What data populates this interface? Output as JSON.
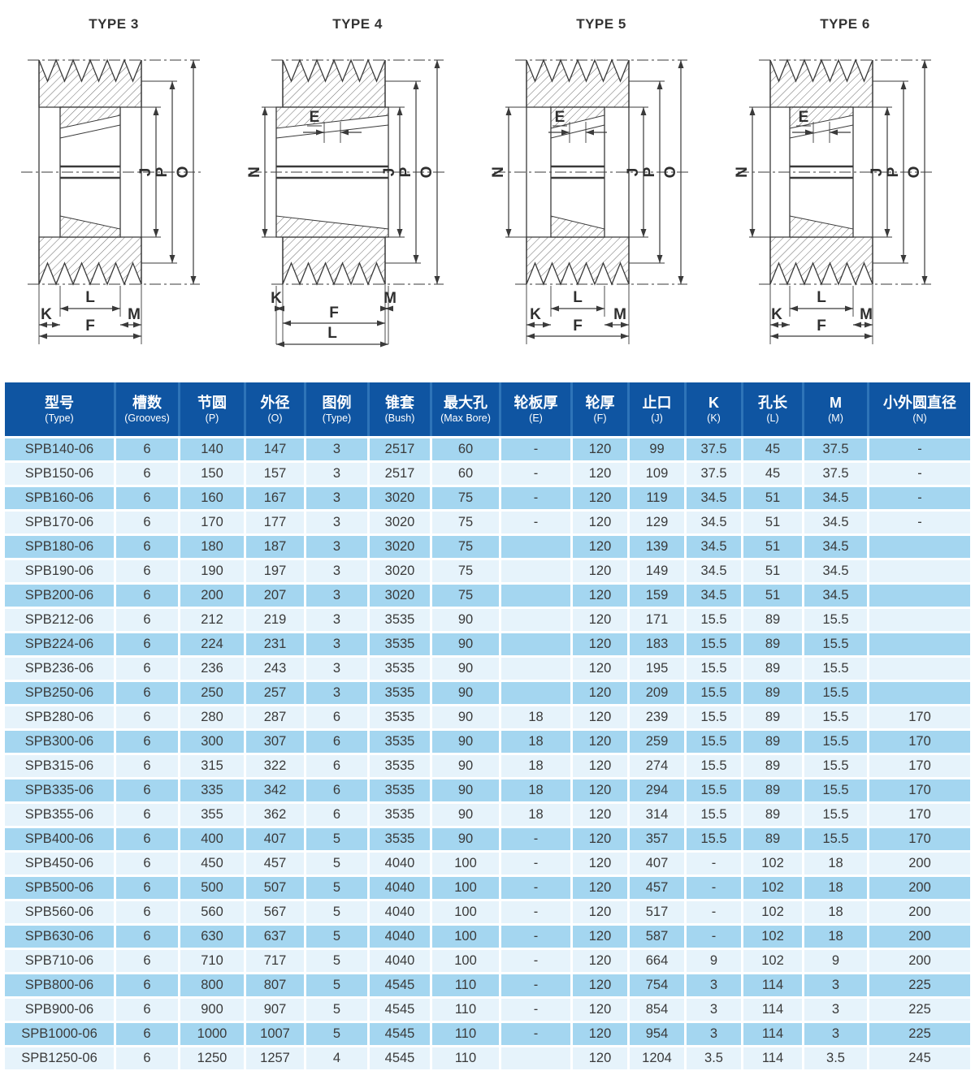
{
  "diagrams": [
    {
      "title": "TYPE 3",
      "dims": {
        "J": "J",
        "P": "P",
        "O": "O",
        "L": "L",
        "K": "K",
        "M": "M",
        "F": "F"
      }
    },
    {
      "title": "TYPE 4",
      "dims": {
        "E": "E",
        "N": "N",
        "J": "J",
        "P": "P",
        "O": "O",
        "L": "L",
        "K": "K",
        "M": "M",
        "F": "F"
      }
    },
    {
      "title": "TYPE 5",
      "dims": {
        "E": "E",
        "N": "N",
        "J": "J",
        "P": "P",
        "O": "O",
        "L": "L",
        "K": "K",
        "M": "M",
        "F": "F"
      }
    },
    {
      "title": "TYPE 6",
      "dims": {
        "E": "E",
        "N": "N",
        "J": "J",
        "P": "P",
        "O": "O",
        "L": "L",
        "K": "K",
        "M": "M",
        "F": "F"
      }
    }
  ],
  "table": {
    "headers": [
      {
        "zh": "型号",
        "en": "(Type)"
      },
      {
        "zh": "槽数",
        "en": "(Grooves)"
      },
      {
        "zh": "节圆",
        "en": "(P)"
      },
      {
        "zh": "外径",
        "en": "(O)"
      },
      {
        "zh": "图例",
        "en": "(Type)"
      },
      {
        "zh": "锥套",
        "en": "(Bush)"
      },
      {
        "zh": "最大孔",
        "en": "(Max Bore)"
      },
      {
        "zh": "轮板厚",
        "en": "(E)"
      },
      {
        "zh": "轮厚",
        "en": "(F)"
      },
      {
        "zh": "止口",
        "en": "(J)"
      },
      {
        "zh": "K",
        "en": "(K)"
      },
      {
        "zh": "孔长",
        "en": "(L)"
      },
      {
        "zh": "M",
        "en": "(M)"
      },
      {
        "zh": "小外圆直径",
        "en": "(N)"
      }
    ],
    "rows": [
      [
        "SPB140-06",
        "6",
        "140",
        "147",
        "3",
        "2517",
        "60",
        "-",
        "120",
        "99",
        "37.5",
        "45",
        "37.5",
        "-"
      ],
      [
        "SPB150-06",
        "6",
        "150",
        "157",
        "3",
        "2517",
        "60",
        "-",
        "120",
        "109",
        "37.5",
        "45",
        "37.5",
        "-"
      ],
      [
        "SPB160-06",
        "6",
        "160",
        "167",
        "3",
        "3020",
        "75",
        "-",
        "120",
        "119",
        "34.5",
        "51",
        "34.5",
        "-"
      ],
      [
        "SPB170-06",
        "6",
        "170",
        "177",
        "3",
        "3020",
        "75",
        "-",
        "120",
        "129",
        "34.5",
        "51",
        "34.5",
        "-"
      ],
      [
        "SPB180-06",
        "6",
        "180",
        "187",
        "3",
        "3020",
        "75",
        "",
        "120",
        "139",
        "34.5",
        "51",
        "34.5",
        ""
      ],
      [
        "SPB190-06",
        "6",
        "190",
        "197",
        "3",
        "3020",
        "75",
        "",
        "120",
        "149",
        "34.5",
        "51",
        "34.5",
        ""
      ],
      [
        "SPB200-06",
        "6",
        "200",
        "207",
        "3",
        "3020",
        "75",
        "",
        "120",
        "159",
        "34.5",
        "51",
        "34.5",
        ""
      ],
      [
        "SPB212-06",
        "6",
        "212",
        "219",
        "3",
        "3535",
        "90",
        "",
        "120",
        "171",
        "15.5",
        "89",
        "15.5",
        ""
      ],
      [
        "SPB224-06",
        "6",
        "224",
        "231",
        "3",
        "3535",
        "90",
        "",
        "120",
        "183",
        "15.5",
        "89",
        "15.5",
        ""
      ],
      [
        "SPB236-06",
        "6",
        "236",
        "243",
        "3",
        "3535",
        "90",
        "",
        "120",
        "195",
        "15.5",
        "89",
        "15.5",
        ""
      ],
      [
        "SPB250-06",
        "6",
        "250",
        "257",
        "3",
        "3535",
        "90",
        "",
        "120",
        "209",
        "15.5",
        "89",
        "15.5",
        ""
      ],
      [
        "SPB280-06",
        "6",
        "280",
        "287",
        "6",
        "3535",
        "90",
        "18",
        "120",
        "239",
        "15.5",
        "89",
        "15.5",
        "170"
      ],
      [
        "SPB300-06",
        "6",
        "300",
        "307",
        "6",
        "3535",
        "90",
        "18",
        "120",
        "259",
        "15.5",
        "89",
        "15.5",
        "170"
      ],
      [
        "SPB315-06",
        "6",
        "315",
        "322",
        "6",
        "3535",
        "90",
        "18",
        "120",
        "274",
        "15.5",
        "89",
        "15.5",
        "170"
      ],
      [
        "SPB335-06",
        "6",
        "335",
        "342",
        "6",
        "3535",
        "90",
        "18",
        "120",
        "294",
        "15.5",
        "89",
        "15.5",
        "170"
      ],
      [
        "SPB355-06",
        "6",
        "355",
        "362",
        "6",
        "3535",
        "90",
        "18",
        "120",
        "314",
        "15.5",
        "89",
        "15.5",
        "170"
      ],
      [
        "SPB400-06",
        "6",
        "400",
        "407",
        "5",
        "3535",
        "90",
        "-",
        "120",
        "357",
        "15.5",
        "89",
        "15.5",
        "170"
      ],
      [
        "SPB450-06",
        "6",
        "450",
        "457",
        "5",
        "4040",
        "100",
        "-",
        "120",
        "407",
        "-",
        "102",
        "18",
        "200"
      ],
      [
        "SPB500-06",
        "6",
        "500",
        "507",
        "5",
        "4040",
        "100",
        "-",
        "120",
        "457",
        "-",
        "102",
        "18",
        "200"
      ],
      [
        "SPB560-06",
        "6",
        "560",
        "567",
        "5",
        "4040",
        "100",
        "-",
        "120",
        "517",
        "-",
        "102",
        "18",
        "200"
      ],
      [
        "SPB630-06",
        "6",
        "630",
        "637",
        "5",
        "4040",
        "100",
        "-",
        "120",
        "587",
        "-",
        "102",
        "18",
        "200"
      ],
      [
        "SPB710-06",
        "6",
        "710",
        "717",
        "5",
        "4040",
        "100",
        "-",
        "120",
        "664",
        "9",
        "102",
        "9",
        "200"
      ],
      [
        "SPB800-06",
        "6",
        "800",
        "807",
        "5",
        "4545",
        "110",
        "-",
        "120",
        "754",
        "3",
        "114",
        "3",
        "225"
      ],
      [
        "SPB900-06",
        "6",
        "900",
        "907",
        "5",
        "4545",
        "110",
        "-",
        "120",
        "854",
        "3",
        "114",
        "3",
        "225"
      ],
      [
        "SPB1000-06",
        "6",
        "1000",
        "1007",
        "5",
        "4545",
        "110",
        "-",
        "120",
        "954",
        "3",
        "114",
        "3",
        "225"
      ],
      [
        "SPB1250-06",
        "6",
        "1250",
        "1257",
        "4",
        "4545",
        "110",
        "",
        "120",
        "1204",
        "3.5",
        "114",
        "3.5",
        "245"
      ]
    ]
  },
  "colors": {
    "header_bg": "#0f55a2",
    "header_divider": "#2e74b8",
    "header_text": "#ffffff",
    "row_dark": "#a4d6f0",
    "row_light": "#e6f3fb",
    "row_text": "#3a3a3a"
  }
}
